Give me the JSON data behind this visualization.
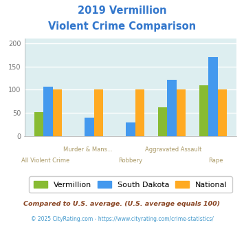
{
  "title_line1": "2019 Vermillion",
  "title_line2": "Violent Crime Comparison",
  "title_color": "#3377cc",
  "categories": [
    "All Violent Crime",
    "Murder & Mans...",
    "Robbery",
    "Aggravated Assault",
    "Rape"
  ],
  "labels_upper": [
    "Murder & Mans...",
    "Aggravated Assault"
  ],
  "labels_lower": [
    "All Violent Crime",
    "Robbery",
    "Rape"
  ],
  "vermillion": [
    52,
    0,
    0,
    62,
    110
  ],
  "south_dakota": [
    106,
    40,
    29,
    122,
    170
  ],
  "national": [
    100,
    100,
    100,
    100,
    100
  ],
  "color_vermillion": "#88bb33",
  "color_south_dakota": "#4499ee",
  "color_national": "#ffaa22",
  "ylim": [
    0,
    210
  ],
  "yticks": [
    0,
    50,
    100,
    150,
    200
  ],
  "plot_bg": "#ddeef0",
  "legend_labels": [
    "Vermillion",
    "South Dakota",
    "National"
  ],
  "footnote1": "Compared to U.S. average. (U.S. average equals 100)",
  "footnote2": "© 2025 CityRating.com - https://www.cityrating.com/crime-statistics/",
  "footnote1_color": "#884422",
  "footnote2_color": "#4499cc"
}
